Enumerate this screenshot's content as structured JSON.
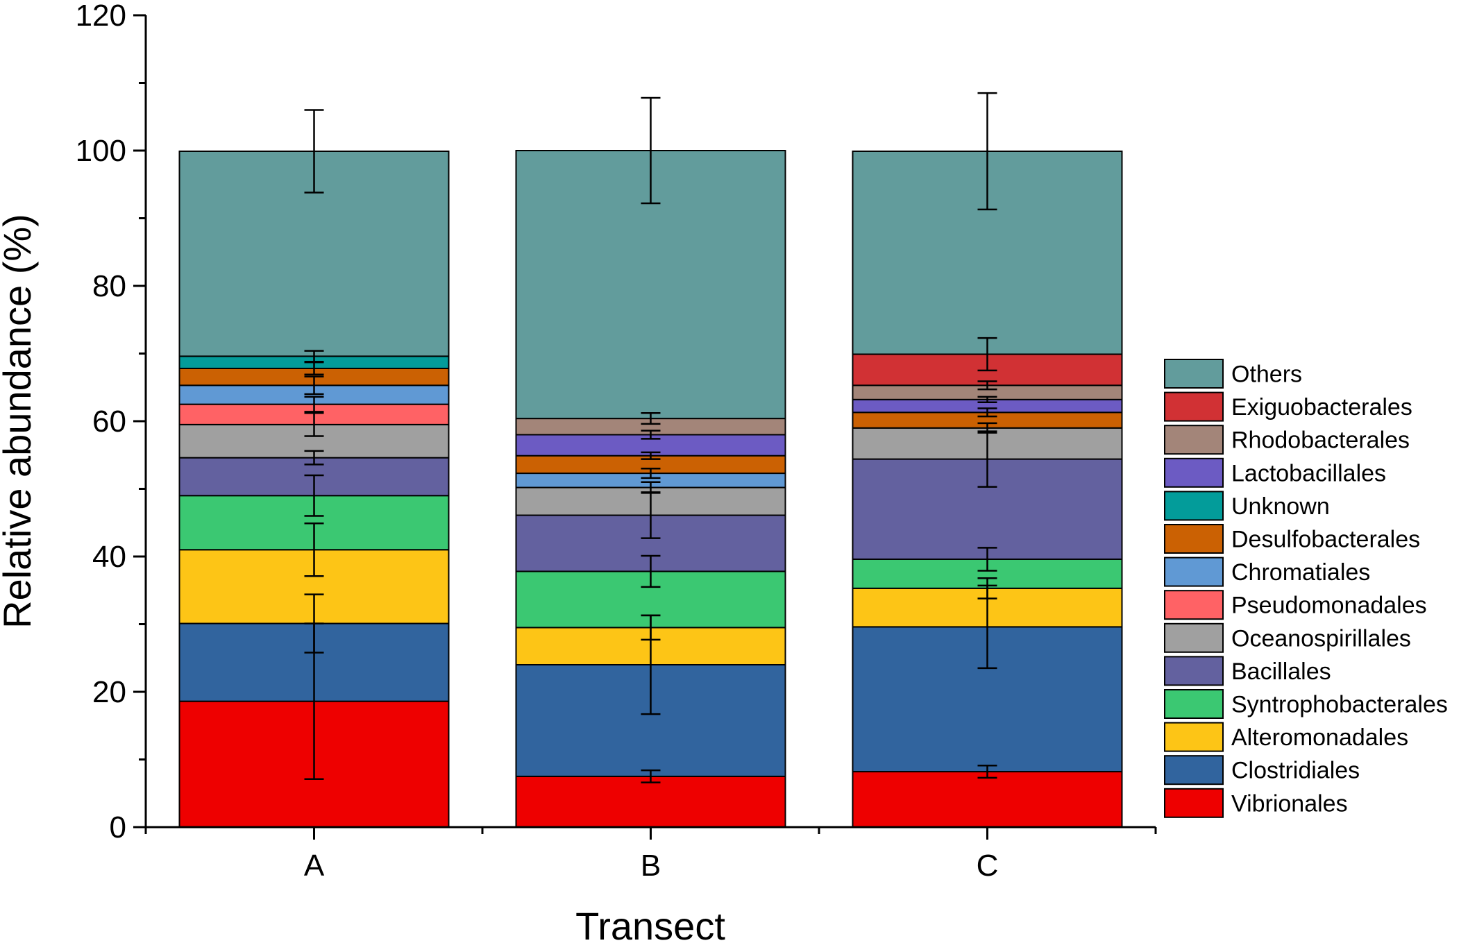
{
  "chart_data": {
    "type": "bar",
    "stacked": true,
    "xlabel": "Transect",
    "ylabel": "Relative abundance (%)",
    "ylim": [
      0,
      120
    ],
    "yticks": [
      0,
      20,
      40,
      60,
      80,
      100,
      120
    ],
    "categories": [
      "A",
      "B",
      "C"
    ],
    "legend_position": "right",
    "series": [
      {
        "name": "Vibrionales",
        "color": "#EE0000",
        "values": [
          18.6,
          7.5,
          8.2
        ],
        "errors": [
          11.5,
          0.9,
          0.9
        ]
      },
      {
        "name": "Clostridiales",
        "color": "#31649E",
        "values": [
          11.5,
          16.5,
          21.4
        ],
        "errors": [
          4.3,
          7.3,
          6.1
        ]
      },
      {
        "name": "Alteromonadales",
        "color": "#FDC516",
        "values": [
          10.9,
          5.5,
          5.7
        ],
        "errors": [
          3.9,
          1.8,
          1.5
        ]
      },
      {
        "name": "Syntrophobacterales",
        "color": "#3BC872",
        "values": [
          8.0,
          8.3,
          4.3
        ],
        "errors": [
          3.0,
          2.3,
          1.7
        ]
      },
      {
        "name": "Bacillales",
        "color": "#63619F",
        "values": [
          5.6,
          8.3,
          14.8
        ],
        "errors": [
          1.0,
          3.4,
          4.1
        ]
      },
      {
        "name": "Oceanospirillales",
        "color": "#A0A0A0",
        "values": [
          4.9,
          4.1,
          4.6
        ],
        "errors": [
          1.7,
          0.8,
          0.7
        ]
      },
      {
        "name": "Pseudomonadales",
        "color": "#FF6265",
        "values": [
          3.0,
          0.0,
          0.0
        ],
        "errors": [
          1.1,
          0,
          0
        ]
      },
      {
        "name": "Chromatiales",
        "color": "#6099D4",
        "values": [
          2.8,
          2.1,
          0.0
        ],
        "errors": [
          1.3,
          0.7,
          0
        ]
      },
      {
        "name": "Desulfobacterales",
        "color": "#CB6103",
        "values": [
          2.5,
          2.6,
          2.3
        ],
        "errors": [
          0.9,
          0.5,
          0.6
        ]
      },
      {
        "name": "Unknown",
        "color": "#039C9A",
        "values": [
          1.8,
          0.0,
          0.0
        ],
        "errors": [
          0.8,
          0,
          0
        ]
      },
      {
        "name": "Lactobacillales",
        "color": "#6C5BC3",
        "values": [
          0.0,
          3.1,
          1.9
        ],
        "errors": [
          0,
          0.6,
          0.4
        ]
      },
      {
        "name": "Rhodobacterales",
        "color": "#A38579",
        "values": [
          0.0,
          2.4,
          2.1
        ],
        "errors": [
          0,
          0.8,
          0.6
        ]
      },
      {
        "name": "Exiguobacterales",
        "color": "#D13134",
        "values": [
          0.0,
          0.0,
          4.6
        ],
        "errors": [
          0,
          0,
          2.4
        ]
      },
      {
        "name": "Others",
        "color": "#629C9C",
        "values": [
          30.3,
          39.6,
          30.0
        ],
        "errors": [
          6.1,
          7.8,
          8.6
        ]
      }
    ]
  }
}
